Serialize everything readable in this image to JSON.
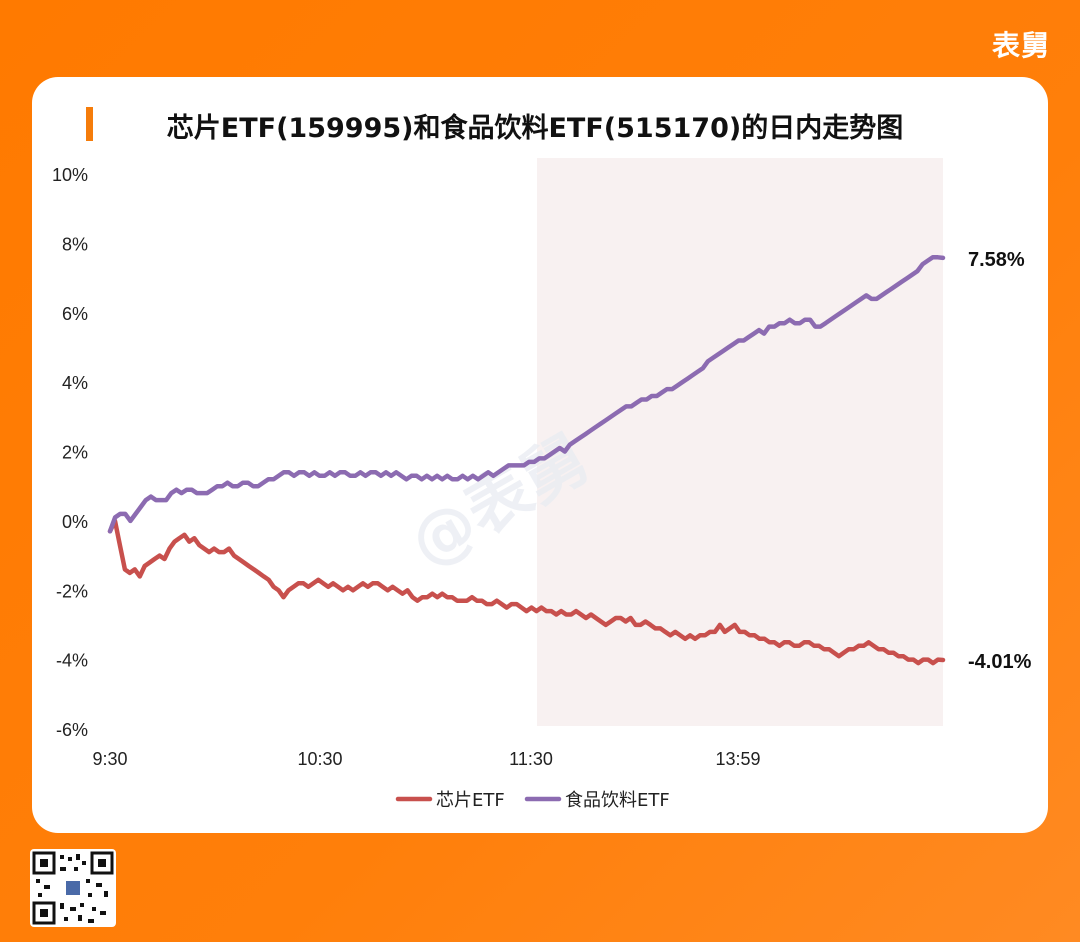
{
  "brand": "表舅",
  "chart_data": {
    "type": "line",
    "title": "芯片ETF(159995)和食品饮料ETF(515170)的日内走势图",
    "x_ticks": [
      "9:30",
      "10:30",
      "11:30",
      "13:59"
    ],
    "y_ticks": [
      "10%",
      "8%",
      "6%",
      "4%",
      "2%",
      "0%",
      "-2%",
      "-4%",
      "-6%"
    ],
    "ylim": [
      -6,
      10
    ],
    "y_unit": "%",
    "shaded_region": "afternoon session (after 11:30)",
    "legend_position": "bottom",
    "series": [
      {
        "name": "芯片ETF",
        "color": "#c8504d",
        "end_label": "-4.01%",
        "values": [
          -0.3,
          0.0,
          -0.7,
          -1.4,
          -1.5,
          -1.4,
          -1.6,
          -1.3,
          -1.2,
          -1.1,
          -1.0,
          -1.1,
          -0.8,
          -0.6,
          -0.5,
          -0.4,
          -0.6,
          -0.5,
          -0.7,
          -0.8,
          -0.9,
          -0.8,
          -0.9,
          -0.9,
          -0.8,
          -1.0,
          -1.1,
          -1.2,
          -1.3,
          -1.4,
          -1.5,
          -1.6,
          -1.7,
          -1.9,
          -2.0,
          -2.2,
          -2.0,
          -1.9,
          -1.8,
          -1.8,
          -1.9,
          -1.8,
          -1.7,
          -1.8,
          -1.9,
          -1.8,
          -1.9,
          -2.0,
          -1.9,
          -2.0,
          -1.9,
          -1.8,
          -1.9,
          -1.8,
          -1.8,
          -1.9,
          -2.0,
          -1.9,
          -2.0,
          -2.1,
          -2.0,
          -2.2,
          -2.3,
          -2.2,
          -2.2,
          -2.1,
          -2.2,
          -2.1,
          -2.2,
          -2.2,
          -2.3,
          -2.3,
          -2.3,
          -2.2,
          -2.3,
          -2.3,
          -2.4,
          -2.4,
          -2.3,
          -2.4,
          -2.5,
          -2.4,
          -2.4,
          -2.5,
          -2.6,
          -2.5,
          -2.6,
          -2.5,
          -2.6,
          -2.6,
          -2.7,
          -2.6,
          -2.7,
          -2.7,
          -2.6,
          -2.7,
          -2.8,
          -2.7,
          -2.8,
          -2.9,
          -3.0,
          -2.9,
          -2.8,
          -2.8,
          -2.9,
          -2.8,
          -3.0,
          -3.0,
          -2.9,
          -3.0,
          -3.1,
          -3.1,
          -3.2,
          -3.3,
          -3.2,
          -3.3,
          -3.4,
          -3.3,
          -3.4,
          -3.3,
          -3.3,
          -3.2,
          -3.2,
          -3.0,
          -3.2,
          -3.1,
          -3.0,
          -3.2,
          -3.2,
          -3.3,
          -3.3,
          -3.4,
          -3.4,
          -3.5,
          -3.5,
          -3.6,
          -3.5,
          -3.5,
          -3.6,
          -3.6,
          -3.5,
          -3.5,
          -3.6,
          -3.6,
          -3.7,
          -3.7,
          -3.8,
          -3.9,
          -3.8,
          -3.7,
          -3.7,
          -3.6,
          -3.6,
          -3.5,
          -3.6,
          -3.7,
          -3.7,
          -3.8,
          -3.8,
          -3.9,
          -3.9,
          -4.0,
          -4.0,
          -4.1,
          -4.0,
          -4.0,
          -4.1,
          -4.0,
          -4.01
        ],
        "last_value": -4.01
      },
      {
        "name": "食品饮料ETF",
        "color": "#8c6bb1",
        "end_label": "7.58%",
        "values": [
          -0.3,
          0.1,
          0.2,
          0.2,
          0.0,
          0.2,
          0.4,
          0.6,
          0.7,
          0.6,
          0.6,
          0.6,
          0.8,
          0.9,
          0.8,
          0.9,
          0.9,
          0.8,
          0.8,
          0.8,
          0.9,
          1.0,
          1.0,
          1.1,
          1.0,
          1.0,
          1.1,
          1.1,
          1.0,
          1.0,
          1.1,
          1.2,
          1.2,
          1.3,
          1.4,
          1.4,
          1.3,
          1.4,
          1.4,
          1.3,
          1.4,
          1.3,
          1.3,
          1.4,
          1.3,
          1.4,
          1.4,
          1.3,
          1.3,
          1.4,
          1.3,
          1.4,
          1.4,
          1.3,
          1.4,
          1.3,
          1.4,
          1.3,
          1.2,
          1.3,
          1.3,
          1.2,
          1.3,
          1.2,
          1.3,
          1.2,
          1.3,
          1.2,
          1.2,
          1.3,
          1.2,
          1.3,
          1.2,
          1.3,
          1.4,
          1.3,
          1.4,
          1.5,
          1.6,
          1.6,
          1.6,
          1.6,
          1.7,
          1.7,
          1.8,
          1.8,
          1.9,
          2.0,
          2.1,
          2.0,
          2.2,
          2.3,
          2.4,
          2.5,
          2.6,
          2.7,
          2.8,
          2.9,
          3.0,
          3.1,
          3.2,
          3.3,
          3.3,
          3.4,
          3.5,
          3.5,
          3.6,
          3.6,
          3.7,
          3.8,
          3.8,
          3.9,
          4.0,
          4.1,
          4.2,
          4.3,
          4.4,
          4.6,
          4.7,
          4.8,
          4.9,
          5.0,
          5.1,
          5.2,
          5.2,
          5.3,
          5.4,
          5.5,
          5.4,
          5.6,
          5.6,
          5.7,
          5.7,
          5.8,
          5.7,
          5.7,
          5.8,
          5.8,
          5.6,
          5.6,
          5.7,
          5.8,
          5.9,
          6.0,
          6.1,
          6.2,
          6.3,
          6.4,
          6.5,
          6.4,
          6.4,
          6.5,
          6.6,
          6.7,
          6.8,
          6.9,
          7.0,
          7.1,
          7.2,
          7.4,
          7.5,
          7.6,
          7.6,
          7.58
        ],
        "last_value": 7.58
      }
    ]
  }
}
